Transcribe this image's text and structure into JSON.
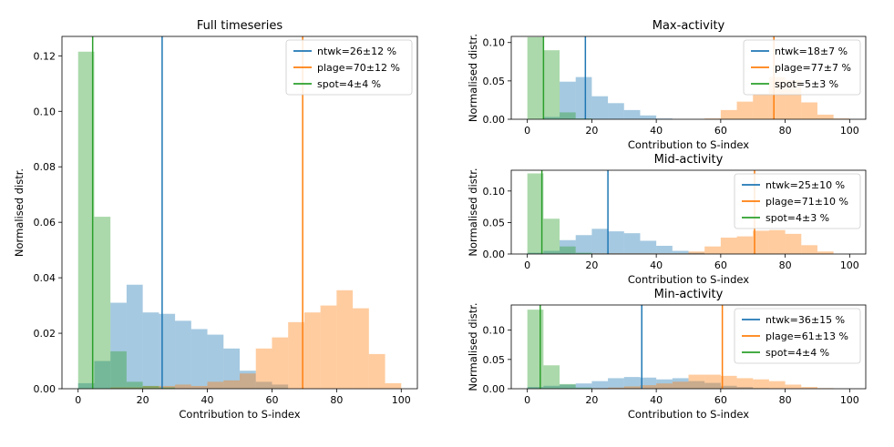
{
  "colors": {
    "ntwk": "#1f77b4",
    "plage": "#ff7f0e",
    "spot": "#2ca02c"
  },
  "chart_data": [
    {
      "type": "bar",
      "id": "full",
      "title": "Full timeseries",
      "xlabel": "Contribution to S-index",
      "ylabel": "Normalised distr.",
      "xlim": [
        -5,
        105
      ],
      "ylim": [
        0,
        0.127
      ],
      "xticks": [
        0,
        20,
        40,
        60,
        80,
        100
      ],
      "yticks": [
        0.0,
        0.02,
        0.04,
        0.06,
        0.08,
        0.1,
        0.12
      ],
      "ytick_labels": [
        "0.00",
        "0.02",
        "0.04",
        "0.06",
        "0.08",
        "0.10",
        "0.12"
      ],
      "bin_width": 5,
      "legend_position": "top-right",
      "series": [
        {
          "key": "ntwk",
          "legend": "ntwk=26±12 %",
          "vline": 26,
          "bins": [
            [
              0,
              0.002
            ],
            [
              5,
              0.01
            ],
            [
              10,
              0.031
            ],
            [
              15,
              0.0375
            ],
            [
              20,
              0.0275
            ],
            [
              25,
              0.027
            ],
            [
              30,
              0.0245
            ],
            [
              35,
              0.0215
            ],
            [
              40,
              0.0195
            ],
            [
              45,
              0.0145
            ],
            [
              50,
              0.0065
            ],
            [
              55,
              0.0025
            ],
            [
              60,
              0.0015
            ]
          ]
        },
        {
          "key": "plage",
          "legend": "plage=70±12 %",
          "vline": 69.5,
          "bins": [
            [
              10,
              0.0005
            ],
            [
              15,
              0.0005
            ],
            [
              20,
              0.001
            ],
            [
              25,
              0.001
            ],
            [
              30,
              0.0015
            ],
            [
              35,
              0.001
            ],
            [
              40,
              0.0025
            ],
            [
              45,
              0.003
            ],
            [
              50,
              0.0055
            ],
            [
              55,
              0.0145
            ],
            [
              60,
              0.0185
            ],
            [
              65,
              0.024
            ],
            [
              70,
              0.0275
            ],
            [
              75,
              0.03
            ],
            [
              80,
              0.0355
            ],
            [
              85,
              0.029
            ],
            [
              90,
              0.0125
            ],
            [
              95,
              0.002
            ]
          ]
        },
        {
          "key": "spot",
          "legend": "spot=4±4 %",
          "vline": 4.5,
          "bins": [
            [
              0,
              0.1215
            ],
            [
              5,
              0.062
            ],
            [
              10,
              0.0135
            ],
            [
              15,
              0.0025
            ],
            [
              20,
              0.001
            ],
            [
              25,
              0.0005
            ]
          ]
        }
      ]
    },
    {
      "type": "bar",
      "id": "max",
      "title": "Max-activity",
      "xlabel": "Contribution to S-index",
      "ylabel": "Normalised distr.",
      "xlim": [
        -5,
        105
      ],
      "ylim": [
        0,
        0.108
      ],
      "xticks": [
        0,
        20,
        40,
        60,
        80,
        100
      ],
      "yticks": [
        0.0,
        0.05,
        0.1
      ],
      "ytick_labels": [
        "0.00",
        "0.05",
        "0.10"
      ],
      "bin_width": 5,
      "legend_position": "top-right",
      "series": [
        {
          "key": "ntwk",
          "legend": "ntwk=18±7 %",
          "vline": 18,
          "bins": [
            [
              5,
              0.003
            ],
            [
              10,
              0.049
            ],
            [
              15,
              0.055
            ],
            [
              20,
              0.03
            ],
            [
              25,
              0.021
            ],
            [
              30,
              0.012
            ],
            [
              35,
              0.005
            ],
            [
              40,
              0.001
            ]
          ]
        },
        {
          "key": "plage",
          "legend": "plage=77±7 %",
          "vline": 76.5,
          "bins": [
            [
              55,
              0.001
            ],
            [
              60,
              0.012
            ],
            [
              65,
              0.023
            ],
            [
              70,
              0.033
            ],
            [
              75,
              0.055
            ],
            [
              80,
              0.051
            ],
            [
              85,
              0.022
            ],
            [
              90,
              0.006
            ],
            [
              95,
              0.001
            ]
          ]
        },
        {
          "key": "spot",
          "legend": "spot=5±3 %",
          "vline": 5,
          "bins": [
            [
              0,
              0.107
            ],
            [
              5,
              0.09
            ],
            [
              10,
              0.009
            ],
            [
              15,
              0.001
            ]
          ]
        }
      ]
    },
    {
      "type": "bar",
      "id": "mid",
      "title": "Mid-activity",
      "xlabel": "Contribution to S-index",
      "ylabel": "Normalised distr.",
      "xlim": [
        -5,
        105
      ],
      "ylim": [
        0,
        0.133
      ],
      "xticks": [
        0,
        20,
        40,
        60,
        80,
        100
      ],
      "yticks": [
        0.0,
        0.05,
        0.1
      ],
      "ytick_labels": [
        "0.00",
        "0.05",
        "0.10"
      ],
      "bin_width": 5,
      "legend_position": "top-right",
      "series": [
        {
          "key": "ntwk",
          "legend": "ntwk=25±10 %",
          "vline": 25,
          "bins": [
            [
              0,
              0.002
            ],
            [
              5,
              0.005
            ],
            [
              10,
              0.022
            ],
            [
              15,
              0.03
            ],
            [
              20,
              0.04
            ],
            [
              25,
              0.036
            ],
            [
              30,
              0.033
            ],
            [
              35,
              0.021
            ],
            [
              40,
              0.013
            ],
            [
              45,
              0.005
            ],
            [
              50,
              0.002
            ]
          ]
        },
        {
          "key": "plage",
          "legend": "plage=71±10 %",
          "vline": 70.5,
          "bins": [
            [
              20,
              0.001
            ],
            [
              25,
              0.001
            ],
            [
              30,
              0.001
            ],
            [
              35,
              0.001
            ],
            [
              40,
              0.001
            ],
            [
              45,
              0.001
            ],
            [
              50,
              0.004
            ],
            [
              55,
              0.012
            ],
            [
              60,
              0.026
            ],
            [
              65,
              0.028
            ],
            [
              70,
              0.037
            ],
            [
              75,
              0.038
            ],
            [
              80,
              0.032
            ],
            [
              85,
              0.014
            ],
            [
              90,
              0.004
            ]
          ]
        },
        {
          "key": "spot",
          "legend": "spot=4±3 %",
          "vline": 4.5,
          "bins": [
            [
              0,
              0.128
            ],
            [
              5,
              0.056
            ],
            [
              10,
              0.012
            ],
            [
              15,
              0.002
            ]
          ]
        }
      ]
    },
    {
      "type": "bar",
      "id": "min",
      "title": "Min-activity",
      "xlabel": "Contribution to S-index",
      "ylabel": "Normalised distr.",
      "xlim": [
        -5,
        105
      ],
      "ylim": [
        0,
        0.143
      ],
      "xticks": [
        0,
        20,
        40,
        60,
        80,
        100
      ],
      "yticks": [
        0.0,
        0.05,
        0.1
      ],
      "ytick_labels": [
        "0.00",
        "0.05",
        "0.10"
      ],
      "bin_width": 5,
      "legend_position": "top-right",
      "series": [
        {
          "key": "ntwk",
          "legend": "ntwk=36±15 %",
          "vline": 35.5,
          "bins": [
            [
              0,
              0.003
            ],
            [
              5,
              0.005
            ],
            [
              10,
              0.007
            ],
            [
              15,
              0.009
            ],
            [
              20,
              0.013
            ],
            [
              25,
              0.018
            ],
            [
              30,
              0.02
            ],
            [
              35,
              0.019
            ],
            [
              40,
              0.016
            ],
            [
              45,
              0.018
            ],
            [
              50,
              0.013
            ],
            [
              55,
              0.01
            ],
            [
              60,
              0.005
            ],
            [
              65,
              0.003
            ],
            [
              70,
              0.001
            ]
          ]
        },
        {
          "key": "plage",
          "legend": "plage=61±13 %",
          "vline": 60.5,
          "bins": [
            [
              20,
              0.001
            ],
            [
              25,
              0.002
            ],
            [
              30,
              0.004
            ],
            [
              35,
              0.006
            ],
            [
              40,
              0.009
            ],
            [
              45,
              0.012
            ],
            [
              50,
              0.024
            ],
            [
              55,
              0.024
            ],
            [
              60,
              0.022
            ],
            [
              65,
              0.018
            ],
            [
              70,
              0.016
            ],
            [
              75,
              0.013
            ],
            [
              80,
              0.007
            ],
            [
              85,
              0.003
            ],
            [
              90,
              0.001
            ]
          ]
        },
        {
          "key": "spot",
          "legend": "spot=4±4 %",
          "vline": 4,
          "bins": [
            [
              0,
              0.135
            ],
            [
              5,
              0.04
            ],
            [
              10,
              0.008
            ],
            [
              15,
              0.002
            ]
          ]
        }
      ]
    }
  ]
}
